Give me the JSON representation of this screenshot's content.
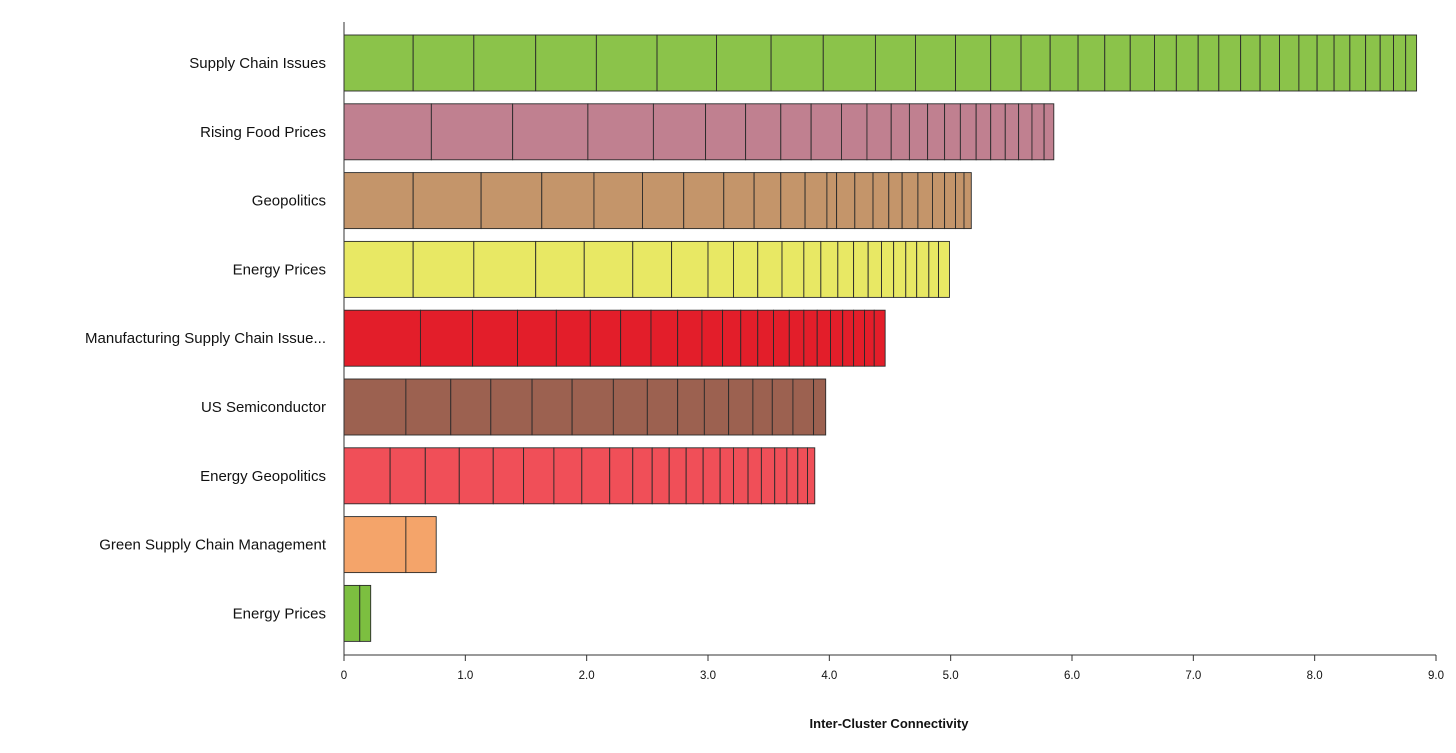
{
  "chart_data": {
    "type": "bar",
    "orientation": "horizontal",
    "stacked": true,
    "title": "",
    "xlabel": "Inter-Cluster Connectivity",
    "ylabel": "",
    "xlim": [
      0,
      9
    ],
    "x_ticks": [
      "0",
      "1.0",
      "2.0",
      "3.0",
      "4.0",
      "5.0",
      "6.0",
      "7.0",
      "8.0",
      "9.0"
    ],
    "grid": false,
    "legend": "none",
    "categories": [
      "Supply Chain Issues",
      "Rising Food Prices",
      "Geopolitics",
      "Energy Prices",
      "Manufacturing Supply Chain Issue...",
      "US Semiconductor",
      "Energy Geopolitics",
      "Green Supply Chain Management",
      "Energy Prices"
    ],
    "colors": [
      "#8bc34a",
      "#c08090",
      "#c4956a",
      "#e8e864",
      "#e31e2a",
      "#9c6150",
      "#f04f58",
      "#f4a46a",
      "#7cbf40"
    ],
    "totals": [
      8.84,
      5.85,
      5.17,
      4.99,
      4.46,
      3.97,
      3.88,
      0.76,
      0.22
    ],
    "segment_boundaries": [
      [
        0,
        0.57,
        1.07,
        1.58,
        2.08,
        2.58,
        3.07,
        3.52,
        3.95,
        4.38,
        4.71,
        5.04,
        5.33,
        5.58,
        5.82,
        6.05,
        6.27,
        6.48,
        6.68,
        6.86,
        7.04,
        7.21,
        7.39,
        7.55,
        7.71,
        7.87,
        8.02,
        8.16,
        8.29,
        8.42,
        8.54,
        8.65,
        8.75,
        8.84
      ],
      [
        0,
        0.72,
        1.39,
        2.01,
        2.55,
        2.98,
        3.31,
        3.6,
        3.85,
        4.1,
        4.31,
        4.51,
        4.66,
        4.81,
        4.95,
        5.08,
        5.21,
        5.33,
        5.45,
        5.56,
        5.67,
        5.77,
        5.85
      ],
      [
        0,
        0.57,
        1.13,
        1.63,
        2.06,
        2.46,
        2.8,
        3.13,
        3.38,
        3.6,
        3.8,
        3.98,
        4.06,
        4.21,
        4.36,
        4.49,
        4.6,
        4.73,
        4.85,
        4.95,
        5.04,
        5.11,
        5.17
      ],
      [
        0,
        0.57,
        1.07,
        1.58,
        1.98,
        2.38,
        2.7,
        3.0,
        3.21,
        3.41,
        3.61,
        3.79,
        3.93,
        4.07,
        4.2,
        4.32,
        4.43,
        4.53,
        4.63,
        4.72,
        4.82,
        4.9,
        4.99
      ],
      [
        0,
        0.63,
        1.06,
        1.43,
        1.75,
        2.03,
        2.28,
        2.53,
        2.75,
        2.95,
        3.12,
        3.27,
        3.41,
        3.54,
        3.67,
        3.79,
        3.9,
        4.01,
        4.11,
        4.2,
        4.29,
        4.37,
        4.46
      ],
      [
        0,
        0.51,
        0.88,
        1.21,
        1.55,
        1.88,
        2.22,
        2.5,
        2.75,
        2.97,
        3.17,
        3.37,
        3.53,
        3.7,
        3.87,
        3.97
      ],
      [
        0,
        0.38,
        0.67,
        0.95,
        1.23,
        1.48,
        1.73,
        1.96,
        2.19,
        2.38,
        2.54,
        2.68,
        2.82,
        2.96,
        3.1,
        3.21,
        3.33,
        3.44,
        3.55,
        3.65,
        3.74,
        3.82,
        3.88
      ],
      [
        0,
        0.51,
        0.76
      ],
      [
        0,
        0.13,
        0.22
      ]
    ]
  }
}
